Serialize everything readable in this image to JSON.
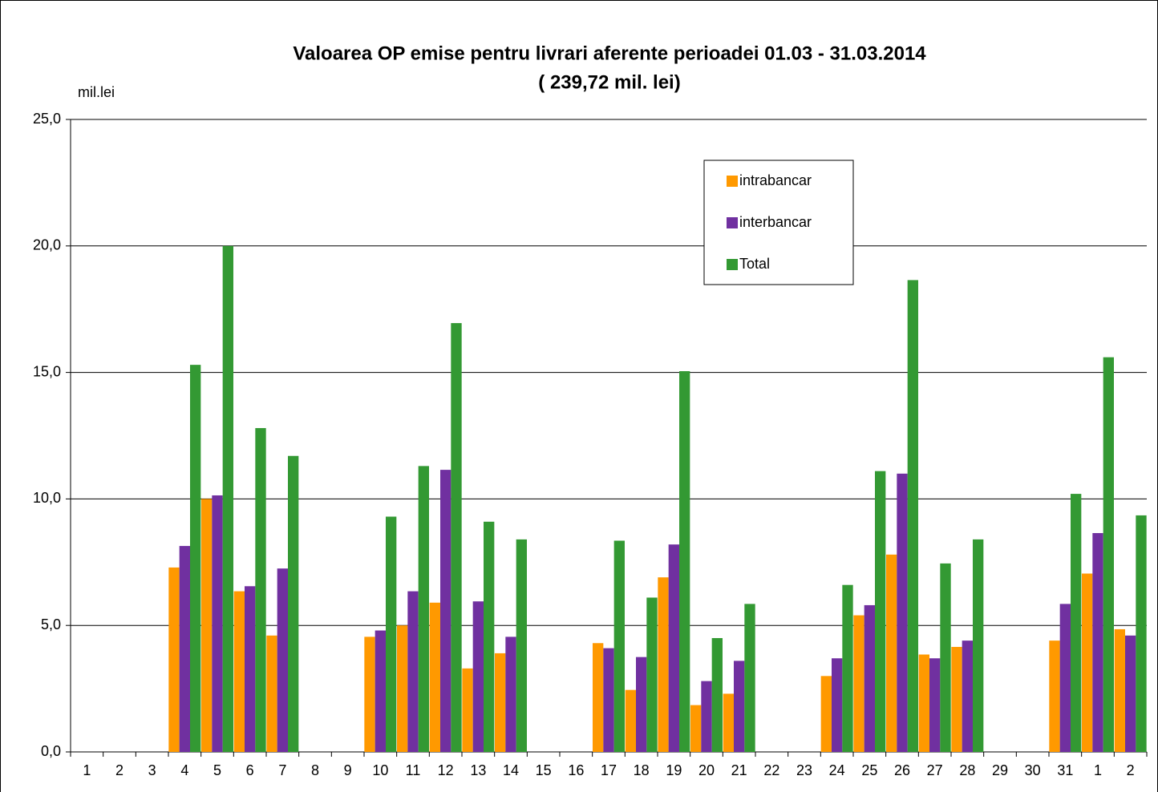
{
  "chart_data": {
    "type": "bar",
    "title": "Valoarea OP emise pentru livrari aferente perioadei 01.03 - 31.03.2014",
    "subtitle": "( 239,72 mil. lei)",
    "y_label": "mil.lei",
    "categories": [
      "1",
      "2",
      "3",
      "4",
      "5",
      "6",
      "7",
      "8",
      "9",
      "10",
      "11",
      "12",
      "13",
      "14",
      "15",
      "16",
      "17",
      "18",
      "19",
      "20",
      "21",
      "22",
      "23",
      "24",
      "25",
      "26",
      "27",
      "28",
      "29",
      "30",
      "31",
      "1",
      "2"
    ],
    "series": [
      {
        "name": "intrabancar",
        "color": "#ff9900",
        "values": [
          null,
          null,
          null,
          7.29,
          10.0,
          6.35,
          4.6,
          null,
          null,
          4.55,
          5.0,
          5.9,
          3.3,
          3.9,
          null,
          null,
          4.3,
          2.45,
          6.9,
          1.85,
          2.3,
          null,
          null,
          3.0,
          5.4,
          7.8,
          3.85,
          4.15,
          null,
          null,
          4.4,
          7.05,
          4.85
        ]
      },
      {
        "name": "interbancar",
        "color": "#7030a0",
        "values": [
          null,
          null,
          null,
          8.14,
          10.14,
          6.55,
          7.25,
          null,
          null,
          4.8,
          6.35,
          11.15,
          5.95,
          4.55,
          null,
          null,
          4.1,
          3.75,
          8.2,
          2.8,
          3.6,
          null,
          null,
          3.7,
          5.8,
          11.0,
          3.7,
          4.4,
          null,
          null,
          5.85,
          8.65,
          4.6
        ]
      },
      {
        "name": "Total",
        "color": "#339933",
        "values": [
          null,
          null,
          null,
          15.3,
          20.0,
          12.8,
          11.7,
          null,
          null,
          9.3,
          11.3,
          16.95,
          9.1,
          8.4,
          null,
          null,
          8.35,
          6.1,
          15.05,
          4.5,
          5.85,
          null,
          null,
          6.6,
          11.1,
          18.65,
          7.45,
          8.4,
          null,
          null,
          10.2,
          15.6,
          9.35
        ]
      }
    ],
    "ylim": [
      0,
      25
    ],
    "yticks": [
      {
        "value": 0,
        "label": "0,0"
      },
      {
        "value": 5,
        "label": "5,0"
      },
      {
        "value": 10,
        "label": "10,0"
      },
      {
        "value": 15,
        "label": "15,0"
      },
      {
        "value": 20,
        "label": "20,0"
      },
      {
        "value": 25,
        "label": "25,0"
      }
    ],
    "grid": true,
    "legend_position": "top-right"
  }
}
